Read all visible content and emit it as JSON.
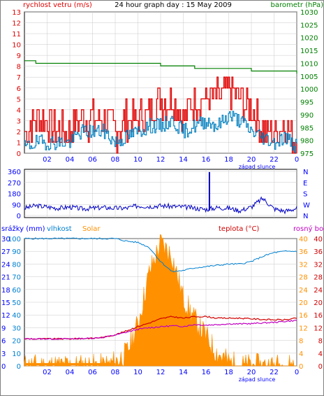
{
  "colors": {
    "wind": "#e00000",
    "gust_secondary": "#0080c0",
    "baro": "#008000",
    "dir": "#0000c0",
    "humidity": "#0080d0",
    "solar": "#ff9000",
    "temp": "#d00000",
    "dew": "#c000c0",
    "rain": "#0000ff",
    "axis_text_blue": "#0000ff",
    "grid": "#c8c8c8"
  },
  "top": {
    "left_title": "rychlost vetru (m/s)",
    "center_title": "24 hour graph day : 15 May 2009",
    "right_title": "barometr (hPa)",
    "left_ticks": [
      "0",
      "1",
      "2",
      "3",
      "4",
      "5",
      "6",
      "7",
      "8",
      "9",
      "10",
      "11",
      "12",
      "13"
    ],
    "right_ticks": [
      "975",
      "980",
      "985",
      "990",
      "995",
      "1000",
      "1005",
      "1010",
      "1015",
      "1020",
      "1025",
      "1030"
    ],
    "x_ticks": [
      "02",
      "04",
      "06",
      "08",
      "10",
      "12",
      "14",
      "16",
      "18",
      "20",
      "22",
      "0"
    ],
    "sunset_label": "západ slunce"
  },
  "middle": {
    "left_ticks": [
      "0",
      "90",
      "180",
      "270",
      "360"
    ],
    "right_labels": [
      "N",
      "E",
      "S",
      "W",
      "N"
    ]
  },
  "bottom": {
    "label_rain": "srážky (mm)",
    "label_humidity": "vlhkost",
    "label_solar": "Solar",
    "label_temp": "teplota (°C)",
    "label_dew": "rosný bod",
    "rain_ticks": [
      "0",
      "3",
      "6",
      "9",
      "12",
      "15",
      "18",
      "21",
      "24",
      "27",
      "30"
    ],
    "humidity_ticks": [
      "0",
      "10",
      "20",
      "30",
      "40",
      "50",
      "60",
      "70",
      "80",
      "90",
      "100"
    ],
    "solar_ticks": [
      "0",
      "3",
      "6",
      "9",
      "12",
      "15",
      "18",
      "21",
      "24",
      "27",
      "30"
    ],
    "solar_ticks_alt": [
      "0",
      "4",
      "8",
      "12",
      "16",
      "20",
      "24",
      "28",
      "32",
      "36",
      "40"
    ],
    "temp_ticks": [
      "0",
      "4",
      "8",
      "12",
      "16",
      "20",
      "24",
      "28",
      "32",
      "36",
      "40"
    ],
    "x_ticks": [
      "02",
      "04",
      "06",
      "08",
      "10",
      "12",
      "14",
      "16",
      "18",
      "20",
      "22",
      "0"
    ],
    "sunset_label": "západ slunce"
  },
  "chart_data": [
    {
      "type": "line",
      "title": "24 hour graph day : 15 May 2009",
      "x_unit": "hour of day",
      "ylabel": "rychlost vetru (m/s)",
      "ylabel_right": "barometr (hPa)",
      "ylim": [
        0,
        13
      ],
      "ylim_right": [
        975,
        1030
      ],
      "series": [
        {
          "name": "rychlost vetru",
          "x": [
            0,
            1,
            2,
            3,
            4,
            5,
            6,
            7,
            8,
            9,
            10,
            11,
            12,
            13,
            14,
            15,
            16,
            17,
            18,
            19,
            20,
            21,
            22,
            23,
            24
          ],
          "values": [
            2,
            3,
            3,
            2,
            2,
            3,
            3,
            3,
            2,
            3,
            3,
            4,
            5,
            5,
            3,
            5,
            5,
            5,
            6,
            5,
            4,
            2,
            2,
            3,
            1
          ]
        },
        {
          "x": [
            0,
            1,
            2,
            3,
            4,
            5,
            6,
            7,
            8,
            9,
            10,
            11,
            12,
            13,
            14,
            15,
            16,
            17,
            18,
            19,
            20,
            21,
            22,
            23,
            24
          ],
          "values": [
            0.5,
            1,
            1,
            1,
            1,
            2,
            2,
            2,
            1,
            1.5,
            2,
            2.5,
            2.5,
            3,
            2,
            2.5,
            3,
            2.5,
            3.5,
            3,
            2,
            1.5,
            1,
            1.5,
            0.5
          ]
        },
        {
          "name": "barometr",
          "x": [
            0,
            1,
            2,
            3,
            4,
            5,
            6,
            7,
            8,
            9,
            10,
            11,
            12,
            13,
            14,
            15,
            16,
            17,
            18,
            19,
            20,
            21,
            22,
            23,
            24
          ],
          "values": [
            1011,
            1010,
            1010,
            1010,
            1010,
            1010,
            1010,
            1010,
            1010,
            1010,
            1010,
            1010,
            1009,
            1009,
            1009,
            1008,
            1008,
            1008,
            1008,
            1008,
            1007,
            1007,
            1007,
            1007,
            1006
          ]
        }
      ]
    },
    {
      "type": "line",
      "ylim": [
        0,
        360
      ],
      "series": [
        {
          "x": [
            0,
            1,
            2,
            3,
            4,
            5,
            6,
            7,
            8,
            9,
            10,
            11,
            12,
            13,
            14,
            15,
            16,
            17,
            18,
            19,
            20,
            21,
            22,
            23,
            24
          ],
          "values": [
            60,
            80,
            70,
            60,
            70,
            55,
            60,
            65,
            60,
            60,
            80,
            75,
            80,
            75,
            70,
            60,
            50,
            65,
            60,
            40,
            70,
            140,
            55,
            35,
            60
          ]
        }
      ]
    },
    {
      "type": "area",
      "ylabel": "srážky (mm) / vlhkost / Solar",
      "ylabel_right": "teplota (°C) / rosný bod",
      "ylim_rain": [
        0,
        30
      ],
      "ylim_humidity": [
        0,
        100
      ],
      "ylim_temp": [
        0,
        40
      ],
      "series": [
        {
          "name": "vlhkost",
          "x": [
            0,
            1,
            2,
            3,
            4,
            5,
            6,
            7,
            8,
            9,
            10,
            11,
            12,
            13,
            14,
            15,
            16,
            17,
            18,
            19,
            20,
            21,
            22,
            23,
            24
          ],
          "values": [
            100,
            100,
            100,
            100,
            100,
            100,
            100,
            100,
            100,
            98,
            97,
            93,
            82,
            74,
            75,
            77,
            78,
            79,
            80,
            80,
            82,
            86,
            89,
            90,
            90
          ]
        },
        {
          "name": "Solar",
          "x": [
            0,
            1,
            2,
            3,
            4,
            5,
            6,
            7,
            8,
            9,
            10,
            11,
            12,
            13,
            14,
            15,
            16,
            17,
            18,
            19,
            20,
            21,
            22,
            23,
            24
          ],
          "values": [
            0,
            0,
            0,
            0,
            0,
            0,
            0,
            0,
            1,
            3,
            10,
            22,
            29,
            26,
            16,
            11,
            7,
            3,
            1,
            0,
            0,
            0,
            0,
            0,
            0
          ]
        },
        {
          "name": "teplota",
          "x": [
            0,
            1,
            2,
            3,
            4,
            5,
            6,
            7,
            8,
            9,
            10,
            11,
            12,
            13,
            14,
            15,
            16,
            17,
            18,
            19,
            20,
            21,
            22,
            23,
            24
          ],
          "values": [
            8.5,
            8.5,
            8.5,
            8.5,
            8.5,
            8.6,
            8.7,
            9.0,
            9.8,
            11.0,
            12.4,
            13.5,
            14.8,
            15.5,
            15.0,
            15.5,
            15.5,
            15.0,
            15.0,
            15.0,
            14.8,
            14.6,
            14.5,
            14.5,
            15.0
          ]
        },
        {
          "name": "rosný bod",
          "x": [
            0,
            1,
            2,
            3,
            4,
            5,
            6,
            7,
            8,
            9,
            10,
            11,
            12,
            13,
            14,
            15,
            16,
            17,
            18,
            19,
            20,
            21,
            22,
            23,
            24
          ],
          "values": [
            8.5,
            8.5,
            8.5,
            8.5,
            8.5,
            8.6,
            8.7,
            9.0,
            9.7,
            10.6,
            11.5,
            12.0,
            12.3,
            12.6,
            12.4,
            13.0,
            12.8,
            13.0,
            13.2,
            13.2,
            13.3,
            13.5,
            13.7,
            14.0,
            14.3
          ]
        },
        {
          "name": "srážky",
          "x": [
            0,
            24
          ],
          "values": [
            0,
            0
          ]
        }
      ]
    }
  ]
}
